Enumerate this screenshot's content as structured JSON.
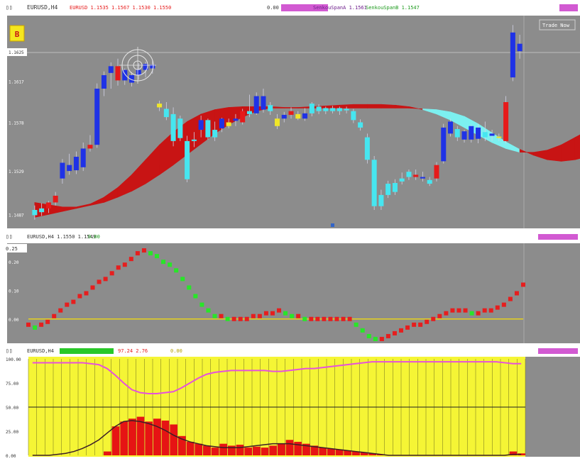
{
  "colors": {
    "panel_bg": "#8c8c8c",
    "yellow_bg": "#f5f535",
    "bull_candle": "#1f32e6",
    "bear_candle": "#e61a1a",
    "cyan_candle": "#46e6f0",
    "neutral_candle": "#f0e628",
    "cloud_red": "#c81414",
    "cloud_cyan": "#7cf0f0",
    "osc_up": "#e61e1e",
    "osc_down": "#28e628",
    "level_line": "#e6d21e",
    "pink_line": "#e650dc",
    "dark_line": "#3c1e28",
    "red_bars": "#e61414",
    "magenta_tag": "#d25ad2"
  },
  "header": {
    "panel1_label": "EURUSD,H4",
    "panel1_info": "EURUSD 1.1535 1.1567 1.1530 1.1550",
    "panel1_right_a": "0.00",
    "panel1_right_b": "SenkouSpanA 1.1561",
    "panel1_right_c": "SenkouSpanB 1.1547",
    "panel2_label": "EURUSD,H4 1.1550 1.1549",
    "panel2_value": "0.00",
    "panel3_label": "EURUSD,H4",
    "panel3_a": "97.24 2.76",
    "panel3_b": "0.00"
  },
  "badge_icon": "trade-bot-icon",
  "badge_label": "B",
  "trade_button_label": "Trade Now",
  "chart_data": [
    {
      "type": "candlestick",
      "title": "EURUSD,H4",
      "ylabels": [
        "1.1617",
        "1.1578",
        "1.1529",
        "1.1487"
      ],
      "current_price_label": "1.1625",
      "candles": [
        {
          "o": 1.1461,
          "h": 1.1474,
          "l": 1.1455,
          "c": 1.1468,
          "color": "cyan"
        },
        {
          "o": 1.1465,
          "h": 1.1477,
          "l": 1.146,
          "c": 1.147,
          "color": "cyan"
        },
        {
          "o": 1.147,
          "h": 1.148,
          "l": 1.1464,
          "c": 1.1478,
          "color": "red"
        },
        {
          "o": 1.1478,
          "h": 1.1492,
          "l": 1.1474,
          "c": 1.1487,
          "color": "red"
        },
        {
          "o": 1.151,
          "h": 1.1536,
          "l": 1.1503,
          "c": 1.1531,
          "color": "blue"
        },
        {
          "o": 1.152,
          "h": 1.1543,
          "l": 1.1515,
          "c": 1.1528,
          "color": "blue"
        },
        {
          "o": 1.1521,
          "h": 1.1546,
          "l": 1.1516,
          "c": 1.1539,
          "color": "blue"
        },
        {
          "o": 1.1525,
          "h": 1.1558,
          "l": 1.152,
          "c": 1.155,
          "color": "blue"
        },
        {
          "o": 1.155,
          "h": 1.1568,
          "l": 1.1546,
          "c": 1.1555,
          "color": "red"
        },
        {
          "o": 1.1555,
          "h": 1.1637,
          "l": 1.1551,
          "c": 1.163,
          "color": "blue"
        },
        {
          "o": 1.163,
          "h": 1.1653,
          "l": 1.162,
          "c": 1.1648,
          "color": "blue"
        },
        {
          "o": 1.1651,
          "h": 1.1665,
          "l": 1.163,
          "c": 1.166,
          "color": "blue"
        },
        {
          "o": 1.166,
          "h": 1.167,
          "l": 1.1634,
          "c": 1.1641,
          "color": "red"
        },
        {
          "o": 1.1641,
          "h": 1.1657,
          "l": 1.1635,
          "c": 1.1655,
          "color": "blue"
        },
        {
          "o": 1.1638,
          "h": 1.1652,
          "l": 1.1633,
          "c": 1.1648,
          "color": "blue"
        },
        {
          "o": 1.1648,
          "h": 1.1664,
          "l": 1.1642,
          "c": 1.1655,
          "color": "blue"
        },
        {
          "o": 1.1655,
          "h": 1.1666,
          "l": 1.1645,
          "c": 1.1663,
          "color": "blue"
        },
        {
          "o": 1.1662,
          "h": 1.1668,
          "l": 1.165,
          "c": 1.1657,
          "color": "blue"
        },
        {
          "o": 1.161,
          "h": 1.1614,
          "l": 1.16,
          "c": 1.1605,
          "color": "yellow"
        },
        {
          "o": 1.1603,
          "h": 1.1612,
          "l": 1.1588,
          "c": 1.1592,
          "color": "cyan"
        },
        {
          "o": 1.156,
          "h": 1.1605,
          "l": 1.1553,
          "c": 1.1596,
          "color": "cyan"
        },
        {
          "o": 1.159,
          "h": 1.1594,
          "l": 1.156,
          "c": 1.1564,
          "color": "cyan"
        },
        {
          "o": 1.156,
          "h": 1.1567,
          "l": 1.1505,
          "c": 1.1509,
          "color": "cyan"
        },
        {
          "o": 1.1562,
          "h": 1.1572,
          "l": 1.1552,
          "c": 1.156,
          "color": "cyan"
        },
        {
          "o": 1.1575,
          "h": 1.1594,
          "l": 1.1565,
          "c": 1.1588,
          "color": "blue"
        },
        {
          "o": 1.1588,
          "h": 1.159,
          "l": 1.1562,
          "c": 1.1565,
          "color": "cyan"
        },
        {
          "o": 1.1565,
          "h": 1.1586,
          "l": 1.156,
          "c": 1.1575,
          "color": "cyan"
        },
        {
          "o": 1.1577,
          "h": 1.1591,
          "l": 1.1572,
          "c": 1.159,
          "color": "blue"
        },
        {
          "o": 1.1585,
          "h": 1.159,
          "l": 1.1577,
          "c": 1.158,
          "color": "yellow"
        },
        {
          "o": 1.159,
          "h": 1.1596,
          "l": 1.158,
          "c": 1.1587,
          "color": "blue"
        },
        {
          "o": 1.1585,
          "h": 1.1603,
          "l": 1.1582,
          "c": 1.16,
          "color": "red"
        },
        {
          "o": 1.16,
          "h": 1.1622,
          "l": 1.1592,
          "c": 1.1596,
          "color": "cyan"
        },
        {
          "o": 1.1597,
          "h": 1.1625,
          "l": 1.1595,
          "c": 1.162,
          "color": "blue"
        },
        {
          "o": 1.162,
          "h": 1.163,
          "l": 1.1598,
          "c": 1.1602,
          "color": "blue"
        },
        {
          "o": 1.16,
          "h": 1.1612,
          "l": 1.1595,
          "c": 1.1608,
          "color": "cyan"
        },
        {
          "o": 1.159,
          "h": 1.1596,
          "l": 1.1576,
          "c": 1.158,
          "color": "yellow"
        },
        {
          "o": 1.159,
          "h": 1.1599,
          "l": 1.1585,
          "c": 1.1595,
          "color": "blue"
        },
        {
          "o": 1.1595,
          "h": 1.1605,
          "l": 1.159,
          "c": 1.16,
          "color": "red"
        },
        {
          "o": 1.1596,
          "h": 1.16,
          "l": 1.1588,
          "c": 1.159,
          "color": "yellow"
        },
        {
          "o": 1.159,
          "h": 1.1604,
          "l": 1.1587,
          "c": 1.1597,
          "color": "blue"
        },
        {
          "o": 1.1597,
          "h": 1.1612,
          "l": 1.1593,
          "c": 1.161,
          "color": "cyan"
        },
        {
          "o": 1.1606,
          "h": 1.1609,
          "l": 1.1596,
          "c": 1.16,
          "color": "cyan"
        },
        {
          "o": 1.16,
          "h": 1.1606,
          "l": 1.1596,
          "c": 1.1604,
          "color": "cyan"
        },
        {
          "o": 1.1604,
          "h": 1.1607,
          "l": 1.1597,
          "c": 1.16,
          "color": "cyan"
        },
        {
          "o": 1.16,
          "h": 1.1606,
          "l": 1.1595,
          "c": 1.1604,
          "color": "cyan"
        },
        {
          "o": 1.1603,
          "h": 1.1606,
          "l": 1.1597,
          "c": 1.1601,
          "color": "cyan"
        },
        {
          "o": 1.16,
          "h": 1.1603,
          "l": 1.1584,
          "c": 1.1588,
          "color": "cyan"
        },
        {
          "o": 1.1585,
          "h": 1.1589,
          "l": 1.1574,
          "c": 1.1578,
          "color": "cyan"
        },
        {
          "o": 1.1565,
          "h": 1.157,
          "l": 1.153,
          "c": 1.1535,
          "color": "cyan"
        },
        {
          "o": 1.1535,
          "h": 1.154,
          "l": 1.1468,
          "c": 1.1473,
          "color": "cyan"
        },
        {
          "o": 1.1488,
          "h": 1.1495,
          "l": 1.1468,
          "c": 1.1473,
          "color": "cyan"
        },
        {
          "o": 1.1503,
          "h": 1.1507,
          "l": 1.1484,
          "c": 1.1488,
          "color": "cyan"
        },
        {
          "o": 1.1492,
          "h": 1.1509,
          "l": 1.1488,
          "c": 1.1504,
          "color": "cyan"
        },
        {
          "o": 1.151,
          "h": 1.1518,
          "l": 1.1502,
          "c": 1.1506,
          "color": "cyan"
        },
        {
          "o": 1.1512,
          "h": 1.1522,
          "l": 1.1508,
          "c": 1.1519,
          "color": "cyan"
        },
        {
          "o": 1.1515,
          "h": 1.1522,
          "l": 1.1508,
          "c": 1.1512,
          "color": "red"
        },
        {
          "o": 1.1512,
          "h": 1.1519,
          "l": 1.1506,
          "c": 1.151,
          "color": "blue"
        },
        {
          "o": 1.1508,
          "h": 1.1512,
          "l": 1.15,
          "c": 1.1503,
          "color": "cyan"
        },
        {
          "o": 1.151,
          "h": 1.1532,
          "l": 1.1506,
          "c": 1.1528,
          "color": "red"
        },
        {
          "o": 1.1533,
          "h": 1.1583,
          "l": 1.153,
          "c": 1.1578,
          "color": "blue"
        },
        {
          "o": 1.157,
          "h": 1.159,
          "l": 1.1566,
          "c": 1.1586,
          "color": "blue"
        },
        {
          "o": 1.1565,
          "h": 1.158,
          "l": 1.156,
          "c": 1.1576,
          "color": "cyan"
        },
        {
          "o": 1.1562,
          "h": 1.1575,
          "l": 1.1558,
          "c": 1.1573,
          "color": "blue"
        },
        {
          "o": 1.1562,
          "h": 1.1582,
          "l": 1.1558,
          "c": 1.158,
          "color": "blue"
        },
        {
          "o": 1.1563,
          "h": 1.1583,
          "l": 1.1557,
          "c": 1.1578,
          "color": "blue"
        },
        {
          "o": 1.1565,
          "h": 1.1586,
          "l": 1.156,
          "c": 1.1572,
          "color": "cyan"
        },
        {
          "o": 1.1567,
          "h": 1.1575,
          "l": 1.156,
          "c": 1.157,
          "color": "blue"
        },
        {
          "o": 1.1566,
          "h": 1.157,
          "l": 1.156,
          "c": 1.1566,
          "color": "yellow"
        },
        {
          "o": 1.156,
          "h": 1.162,
          "l": 1.1557,
          "c": 1.1612,
          "color": "red"
        },
        {
          "o": 1.1645,
          "h": 1.1715,
          "l": 1.164,
          "c": 1.1705,
          "color": "blue"
        },
        {
          "o": 1.169,
          "h": 1.1702,
          "l": 1.167,
          "c": 1.168,
          "color": "blue"
        }
      ],
      "cloud": {
        "span_a": [
          1.1478,
          1.1475,
          1.1472,
          1.1472,
          1.1476,
          1.1485,
          1.1498,
          1.1515,
          1.1535,
          1.1555,
          1.1572,
          1.1586,
          1.1596,
          1.1602,
          1.1605,
          1.1606,
          1.1606,
          1.1606,
          1.1605,
          1.1605,
          1.1606,
          1.1607,
          1.1608,
          1.1609,
          1.1609,
          1.1609,
          1.1608,
          1.1606,
          1.1602,
          1.1596,
          1.1588,
          1.1578,
          1.1568,
          1.1558,
          1.155,
          1.1545,
          1.1545,
          1.1548,
          1.1555,
          1.1565,
          1.1575
        ],
        "span_b": [
          1.1458,
          1.1462,
          1.1466,
          1.147,
          1.1474,
          1.1478,
          1.1485,
          1.1493,
          1.1503,
          1.1515,
          1.1528,
          1.1542,
          1.1556,
          1.157,
          1.1582,
          1.1592,
          1.16,
          1.1604,
          1.1604,
          1.1604,
          1.1604,
          1.1604,
          1.1604,
          1.1604,
          1.1604,
          1.1604,
          1.1604,
          1.1604,
          1.1603,
          1.1602,
          1.1599,
          1.1593,
          1.1583,
          1.1571,
          1.1559,
          1.1549,
          1.1541,
          1.1535,
          1.1533,
          1.1535,
          1.154
        ],
        "sample_every": 2
      }
    },
    {
      "type": "line",
      "title": "EURUSD,H4 1.1550 1.1549",
      "ylabels": [
        "0.20",
        "0.10",
        "0.00"
      ],
      "top_value_label": "0.25",
      "level": 0.0,
      "ylim": [
        -0.08,
        0.26
      ],
      "values": [
        -0.02,
        -0.03,
        -0.02,
        -0.01,
        0.01,
        0.03,
        0.05,
        0.06,
        0.08,
        0.09,
        0.11,
        0.13,
        0.14,
        0.16,
        0.18,
        0.19,
        0.21,
        0.23,
        0.24,
        0.23,
        0.22,
        0.2,
        0.19,
        0.17,
        0.14,
        0.11,
        0.08,
        0.05,
        0.03,
        0.01,
        0.01,
        0.0,
        0.0,
        0.0,
        0.0,
        0.01,
        0.01,
        0.02,
        0.02,
        0.03,
        0.02,
        0.01,
        0.01,
        0.0,
        0.0,
        0.0,
        0.0,
        0.0,
        0.0,
        0.0,
        0.0,
        -0.02,
        -0.04,
        -0.06,
        -0.07,
        -0.07,
        -0.06,
        -0.05,
        -0.04,
        -0.03,
        -0.02,
        -0.02,
        -0.01,
        0.0,
        0.01,
        0.02,
        0.03,
        0.03,
        0.03,
        0.02,
        0.02,
        0.03,
        0.03,
        0.04,
        0.05,
        0.07,
        0.09,
        0.12
      ]
    },
    {
      "type": "bar",
      "title": "EURUSD,H4",
      "ylabels": [
        "100.00",
        "75.00",
        "50.00",
        "25.00",
        "0.00"
      ],
      "ylim": [
        0,
        100
      ],
      "levels": [
        50
      ],
      "bar_count": 60,
      "red_bars": [
        0,
        0,
        0,
        0,
        0,
        0,
        0,
        0,
        0,
        4,
        30,
        35,
        38,
        40,
        35,
        38,
        36,
        32,
        20,
        14,
        12,
        10,
        8,
        12,
        10,
        11,
        8,
        9,
        8,
        10,
        12,
        16,
        14,
        12,
        10,
        8,
        7,
        6,
        5,
        4,
        3,
        2,
        1,
        0,
        0,
        0,
        0,
        0,
        0,
        0,
        0,
        0,
        0,
        0,
        0,
        0,
        0,
        0,
        4,
        2
      ],
      "pink_line": [
        96,
        96,
        96,
        96,
        96,
        96,
        96,
        95,
        94,
        90,
        83,
        75,
        68,
        65,
        64,
        64,
        65,
        66,
        70,
        75,
        80,
        84,
        86,
        87,
        88,
        88,
        88,
        88,
        88,
        87,
        87,
        88,
        89,
        90,
        90,
        91,
        92,
        93,
        94,
        95,
        96,
        97,
        97,
        97,
        97,
        97,
        97,
        97,
        97,
        97,
        97,
        97,
        97,
        97,
        97,
        97,
        97,
        96,
        95,
        95
      ],
      "dark_line": [
        0,
        0,
        0,
        1,
        2,
        4,
        7,
        11,
        16,
        23,
        30,
        35,
        36,
        35,
        33,
        30,
        26,
        21,
        17,
        14,
        12,
        10,
        9,
        8,
        8,
        8,
        9,
        10,
        11,
        12,
        12,
        12,
        11,
        10,
        9,
        8,
        7,
        6,
        5,
        4,
        3,
        2,
        1,
        0,
        0,
        0,
        0,
        0,
        0,
        0,
        0,
        0,
        0,
        0,
        0,
        0,
        0,
        0,
        1,
        1
      ]
    }
  ]
}
